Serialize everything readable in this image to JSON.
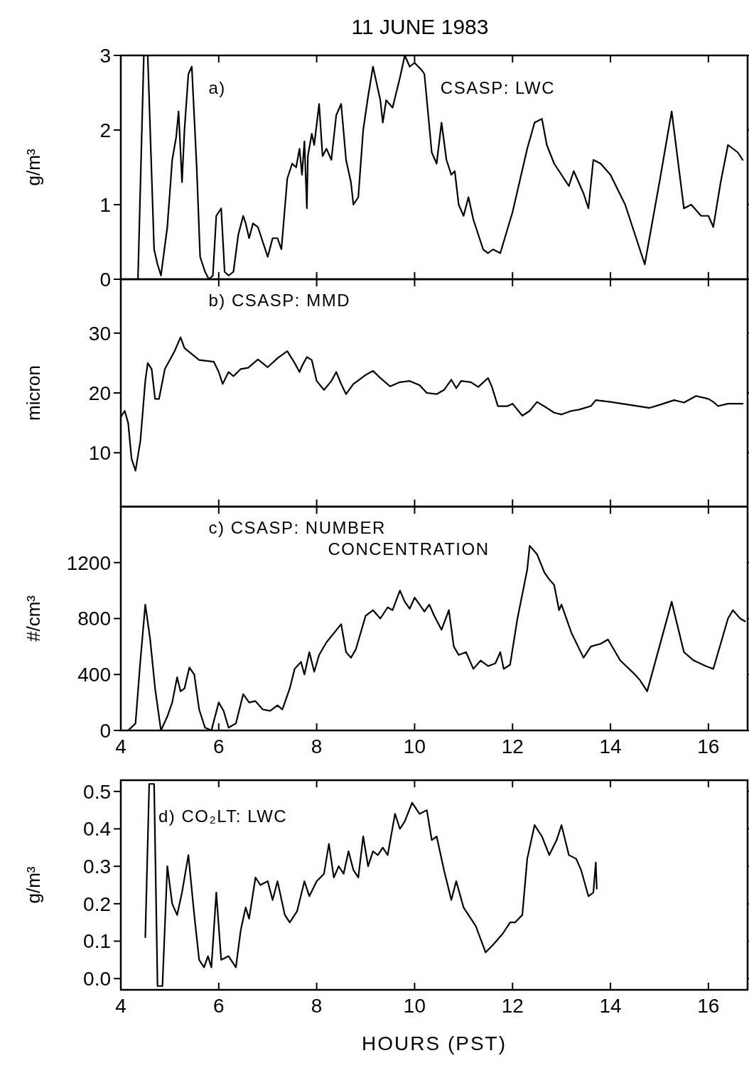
{
  "chart_data": [
    {
      "type": "line",
      "title": "11 JUNE 1983",
      "ylabel": "g/m³",
      "annotations": [
        "a)",
        "CSASP: LWC"
      ],
      "xlim": [
        4,
        16.8
      ],
      "ylim": [
        0,
        3
      ],
      "xticks": [
        4,
        6,
        8,
        10,
        12,
        14,
        16
      ],
      "yticks": [
        0,
        1,
        2,
        3
      ],
      "tick_labels": "y",
      "series": [
        {
          "color": "#000000",
          "x": [
            4.35,
            4.47,
            4.55,
            4.68,
            4.75,
            4.82,
            4.95,
            5.05,
            5.13,
            5.18,
            5.25,
            5.3,
            5.38,
            5.45,
            5.55,
            5.62,
            5.72,
            5.8,
            5.88,
            5.95,
            6.05,
            6.12,
            6.2,
            6.3,
            6.4,
            6.5,
            6.55,
            6.62,
            6.7,
            6.8,
            6.9,
            7.0,
            7.1,
            7.2,
            7.28,
            7.4,
            7.5,
            7.58,
            7.65,
            7.7,
            7.75,
            7.8,
            7.82,
            7.9,
            7.95,
            8.05,
            8.12,
            8.2,
            8.3,
            8.4,
            8.5,
            8.6,
            8.7,
            8.75,
            8.85,
            8.95,
            9.05,
            9.15,
            9.3,
            9.35,
            9.42,
            9.55,
            9.7,
            9.8,
            9.9,
            10.0,
            10.15,
            10.2,
            10.35,
            10.45,
            10.55,
            10.65,
            10.75,
            10.82,
            10.9,
            11.0,
            11.1,
            11.2,
            11.4,
            11.5,
            11.6,
            11.75,
            12.0,
            12.3,
            12.45,
            12.6,
            12.7,
            12.85,
            13.0,
            13.15,
            13.25,
            13.35,
            13.45,
            13.55,
            13.65,
            13.8,
            14.0,
            14.3,
            14.7,
            15.0,
            15.25,
            15.5,
            15.65,
            15.85,
            16.0,
            16.1,
            16.25,
            16.4,
            16.6,
            16.7
          ],
          "values": [
            0,
            3,
            3,
            0.4,
            0.2,
            0.05,
            0.7,
            1.6,
            1.9,
            2.25,
            1.3,
            2.0,
            2.75,
            2.85,
            1.5,
            0.3,
            0.1,
            0,
            0.05,
            0.85,
            0.95,
            0.1,
            0.05,
            0.1,
            0.6,
            0.85,
            0.75,
            0.55,
            0.75,
            0.7,
            0.5,
            0.3,
            0.55,
            0.55,
            0.4,
            1.35,
            1.55,
            1.5,
            1.75,
            1.4,
            1.85,
            0.95,
            1.65,
            1.95,
            1.8,
            2.35,
            1.65,
            1.75,
            1.6,
            2.2,
            2.35,
            1.6,
            1.3,
            1.0,
            1.1,
            2.0,
            2.45,
            2.85,
            2.4,
            2.1,
            2.4,
            2.3,
            2.7,
            3.0,
            2.85,
            2.9,
            2.8,
            2.75,
            1.7,
            1.55,
            2.1,
            1.6,
            1.4,
            1.45,
            1.0,
            0.85,
            1.1,
            0.8,
            0.4,
            0.35,
            0.4,
            0.35,
            0.9,
            1.75,
            2.1,
            2.15,
            1.8,
            1.55,
            1.4,
            1.25,
            1.45,
            1.3,
            1.15,
            0.95,
            1.6,
            1.55,
            1.4,
            1.0,
            0.2,
            1.3,
            2.25,
            0.95,
            1.0,
            0.85,
            0.85,
            0.7,
            1.3,
            1.8,
            1.7,
            1.6
          ]
        }
      ]
    },
    {
      "type": "line",
      "ylabel": "micron",
      "annotations": [
        "b) CSASP: MMD"
      ],
      "xlim": [
        4,
        16.8
      ],
      "ylim": [
        1,
        39
      ],
      "xticks": [
        4,
        6,
        8,
        10,
        12,
        14,
        16
      ],
      "yticks": [
        10,
        20,
        30
      ],
      "tick_labels": "y",
      "series": [
        {
          "color": "#000000",
          "x": [
            4.0,
            4.08,
            4.15,
            4.22,
            4.3,
            4.4,
            4.5,
            4.55,
            4.63,
            4.7,
            4.78,
            4.9,
            5.1,
            5.22,
            5.3,
            5.6,
            5.9,
            6.0,
            6.08,
            6.2,
            6.3,
            6.45,
            6.6,
            6.8,
            7.0,
            7.2,
            7.4,
            7.55,
            7.65,
            7.7,
            7.8,
            7.9,
            8.0,
            8.15,
            8.3,
            8.4,
            8.5,
            8.6,
            8.75,
            9.0,
            9.15,
            9.3,
            9.5,
            9.7,
            9.9,
            10.1,
            10.25,
            10.45,
            10.6,
            10.75,
            10.85,
            10.95,
            11.15,
            11.3,
            11.5,
            11.58,
            11.7,
            11.9,
            12.0,
            12.2,
            12.35,
            12.5,
            12.7,
            12.85,
            13.0,
            13.2,
            13.35,
            13.6,
            13.7,
            14.0,
            14.4,
            14.8,
            15.0,
            15.3,
            15.5,
            15.75,
            16.0,
            16.1,
            16.2,
            16.4,
            16.7
          ],
          "values": [
            16,
            17,
            15,
            9,
            7,
            12,
            22,
            25,
            24,
            19,
            19,
            24,
            27,
            29.3,
            27.5,
            25.5,
            25.2,
            23.5,
            21.5,
            23.5,
            22.8,
            24,
            24.2,
            25.6,
            24.3,
            25.8,
            27,
            25,
            23.5,
            24.5,
            26,
            25.5,
            22,
            20.5,
            22,
            23.5,
            21.5,
            19.8,
            21.5,
            23,
            23.7,
            22.5,
            21.1,
            21.8,
            22,
            21.3,
            20,
            19.8,
            20.5,
            22.2,
            20.8,
            22,
            21.8,
            21,
            22.5,
            21,
            17.8,
            17.8,
            18.2,
            16.2,
            17,
            18.5,
            17.5,
            16.7,
            16.4,
            17,
            17.2,
            17.8,
            18.8,
            18.5,
            18,
            17.5,
            18,
            18.8,
            18.4,
            19.5,
            19,
            18.5,
            17.8,
            18.2,
            18.2
          ]
        }
      ]
    },
    {
      "type": "line",
      "ylabel": "#/cm³",
      "annotations": [
        "c) CSASP: NUMBER\nCONCENTRATION"
      ],
      "xlim": [
        4,
        16.8
      ],
      "ylim": [
        0,
        1600
      ],
      "xticks": [
        4,
        6,
        8,
        10,
        12,
        14,
        16
      ],
      "yticks": [
        0,
        400,
        800,
        1200
      ],
      "series": [
        {
          "color": "#000000",
          "x": [
            4.0,
            4.15,
            4.3,
            4.4,
            4.5,
            4.6,
            4.7,
            4.82,
            4.95,
            5.05,
            5.15,
            5.22,
            5.3,
            5.4,
            5.5,
            5.6,
            5.72,
            5.85,
            6.0,
            6.1,
            6.2,
            6.35,
            6.5,
            6.62,
            6.75,
            6.9,
            7.05,
            7.2,
            7.3,
            7.45,
            7.55,
            7.68,
            7.75,
            7.85,
            7.95,
            8.05,
            8.2,
            8.5,
            8.6,
            8.7,
            8.8,
            9.0,
            9.15,
            9.3,
            9.45,
            9.55,
            9.7,
            9.8,
            9.9,
            10.0,
            10.2,
            10.3,
            10.4,
            10.55,
            10.7,
            10.8,
            10.9,
            11.05,
            11.2,
            11.35,
            11.5,
            11.65,
            11.75,
            11.82,
            11.95,
            12.1,
            12.3,
            12.35,
            12.5,
            12.65,
            12.75,
            12.85,
            12.95,
            13.0,
            13.2,
            13.45,
            13.6,
            13.8,
            13.95,
            14.2,
            14.5,
            14.6,
            14.75,
            15.0,
            15.25,
            15.5,
            15.7,
            15.95,
            16.1,
            16.4,
            16.5,
            16.65,
            16.75
          ],
          "values": [
            0,
            0,
            50,
            500,
            900,
            650,
            300,
            0,
            100,
            200,
            380,
            280,
            300,
            450,
            400,
            150,
            20,
            0,
            200,
            140,
            20,
            50,
            260,
            200,
            210,
            150,
            140,
            180,
            150,
            300,
            440,
            490,
            400,
            560,
            420,
            540,
            630,
            760,
            560,
            520,
            580,
            820,
            860,
            800,
            880,
            860,
            1000,
            920,
            870,
            950,
            850,
            900,
            820,
            720,
            860,
            600,
            540,
            560,
            440,
            500,
            460,
            480,
            560,
            440,
            470,
            800,
            1150,
            1320,
            1260,
            1130,
            1080,
            1040,
            860,
            900,
            700,
            520,
            600,
            620,
            650,
            500,
            400,
            360,
            280,
            600,
            920,
            560,
            500,
            460,
            440,
            800,
            860,
            800,
            780
          ]
        }
      ]
    },
    {
      "type": "line",
      "xlabel": "HOURS (PST)",
      "ylabel": "g/m³",
      "annotations": [
        "d) CO₂LT: LWC"
      ],
      "xlim": [
        4,
        16.8
      ],
      "ylim": [
        -0.03,
        0.53
      ],
      "xticks": [
        4,
        6,
        8,
        10,
        12,
        14,
        16
      ],
      "yticks": [
        {
          "value": 0,
          "label": "0.0"
        },
        0.1,
        0.2,
        0.3,
        0.4,
        0.5
      ],
      "series": [
        {
          "color": "#000000",
          "x": [
            4.5,
            4.58,
            4.68,
            4.75,
            4.85,
            4.95,
            5.0,
            5.05,
            5.15,
            5.25,
            5.38,
            5.5,
            5.6,
            5.7,
            5.78,
            5.85,
            5.95,
            6.05,
            6.2,
            6.35,
            6.45,
            6.55,
            6.62,
            6.75,
            6.85,
            7.0,
            7.1,
            7.2,
            7.35,
            7.45,
            7.6,
            7.75,
            7.85,
            8.0,
            8.15,
            8.25,
            8.35,
            8.45,
            8.55,
            8.65,
            8.75,
            8.85,
            8.95,
            9.05,
            9.15,
            9.25,
            9.35,
            9.45,
            9.6,
            9.7,
            9.8,
            9.95,
            10.1,
            10.25,
            10.35,
            10.45,
            10.6,
            10.75,
            10.85,
            11.0,
            11.1,
            11.25,
            11.45,
            11.6,
            11.8,
            11.95,
            12.05,
            12.2,
            12.3,
            12.45,
            12.6,
            12.75,
            12.9,
            13.0,
            13.15,
            13.3,
            13.4,
            13.55,
            13.65,
            13.7,
            13.72
          ],
          "values": [
            0.11,
            0.52,
            0.52,
            -0.02,
            -0.02,
            0.3,
            0.25,
            0.2,
            0.17,
            0.23,
            0.33,
            0.17,
            0.05,
            0.03,
            0.06,
            0.03,
            0.23,
            0.05,
            0.06,
            0.03,
            0.13,
            0.19,
            0.16,
            0.27,
            0.25,
            0.26,
            0.21,
            0.26,
            0.17,
            0.15,
            0.18,
            0.26,
            0.22,
            0.26,
            0.28,
            0.36,
            0.27,
            0.3,
            0.28,
            0.34,
            0.29,
            0.27,
            0.38,
            0.3,
            0.34,
            0.33,
            0.35,
            0.33,
            0.44,
            0.4,
            0.42,
            0.47,
            0.44,
            0.45,
            0.37,
            0.38,
            0.29,
            0.21,
            0.26,
            0.19,
            0.17,
            0.14,
            0.07,
            0.09,
            0.12,
            0.15,
            0.15,
            0.17,
            0.32,
            0.41,
            0.38,
            0.33,
            0.37,
            0.41,
            0.33,
            0.32,
            0.29,
            0.22,
            0.23,
            0.31,
            0.24
          ]
        }
      ]
    }
  ]
}
